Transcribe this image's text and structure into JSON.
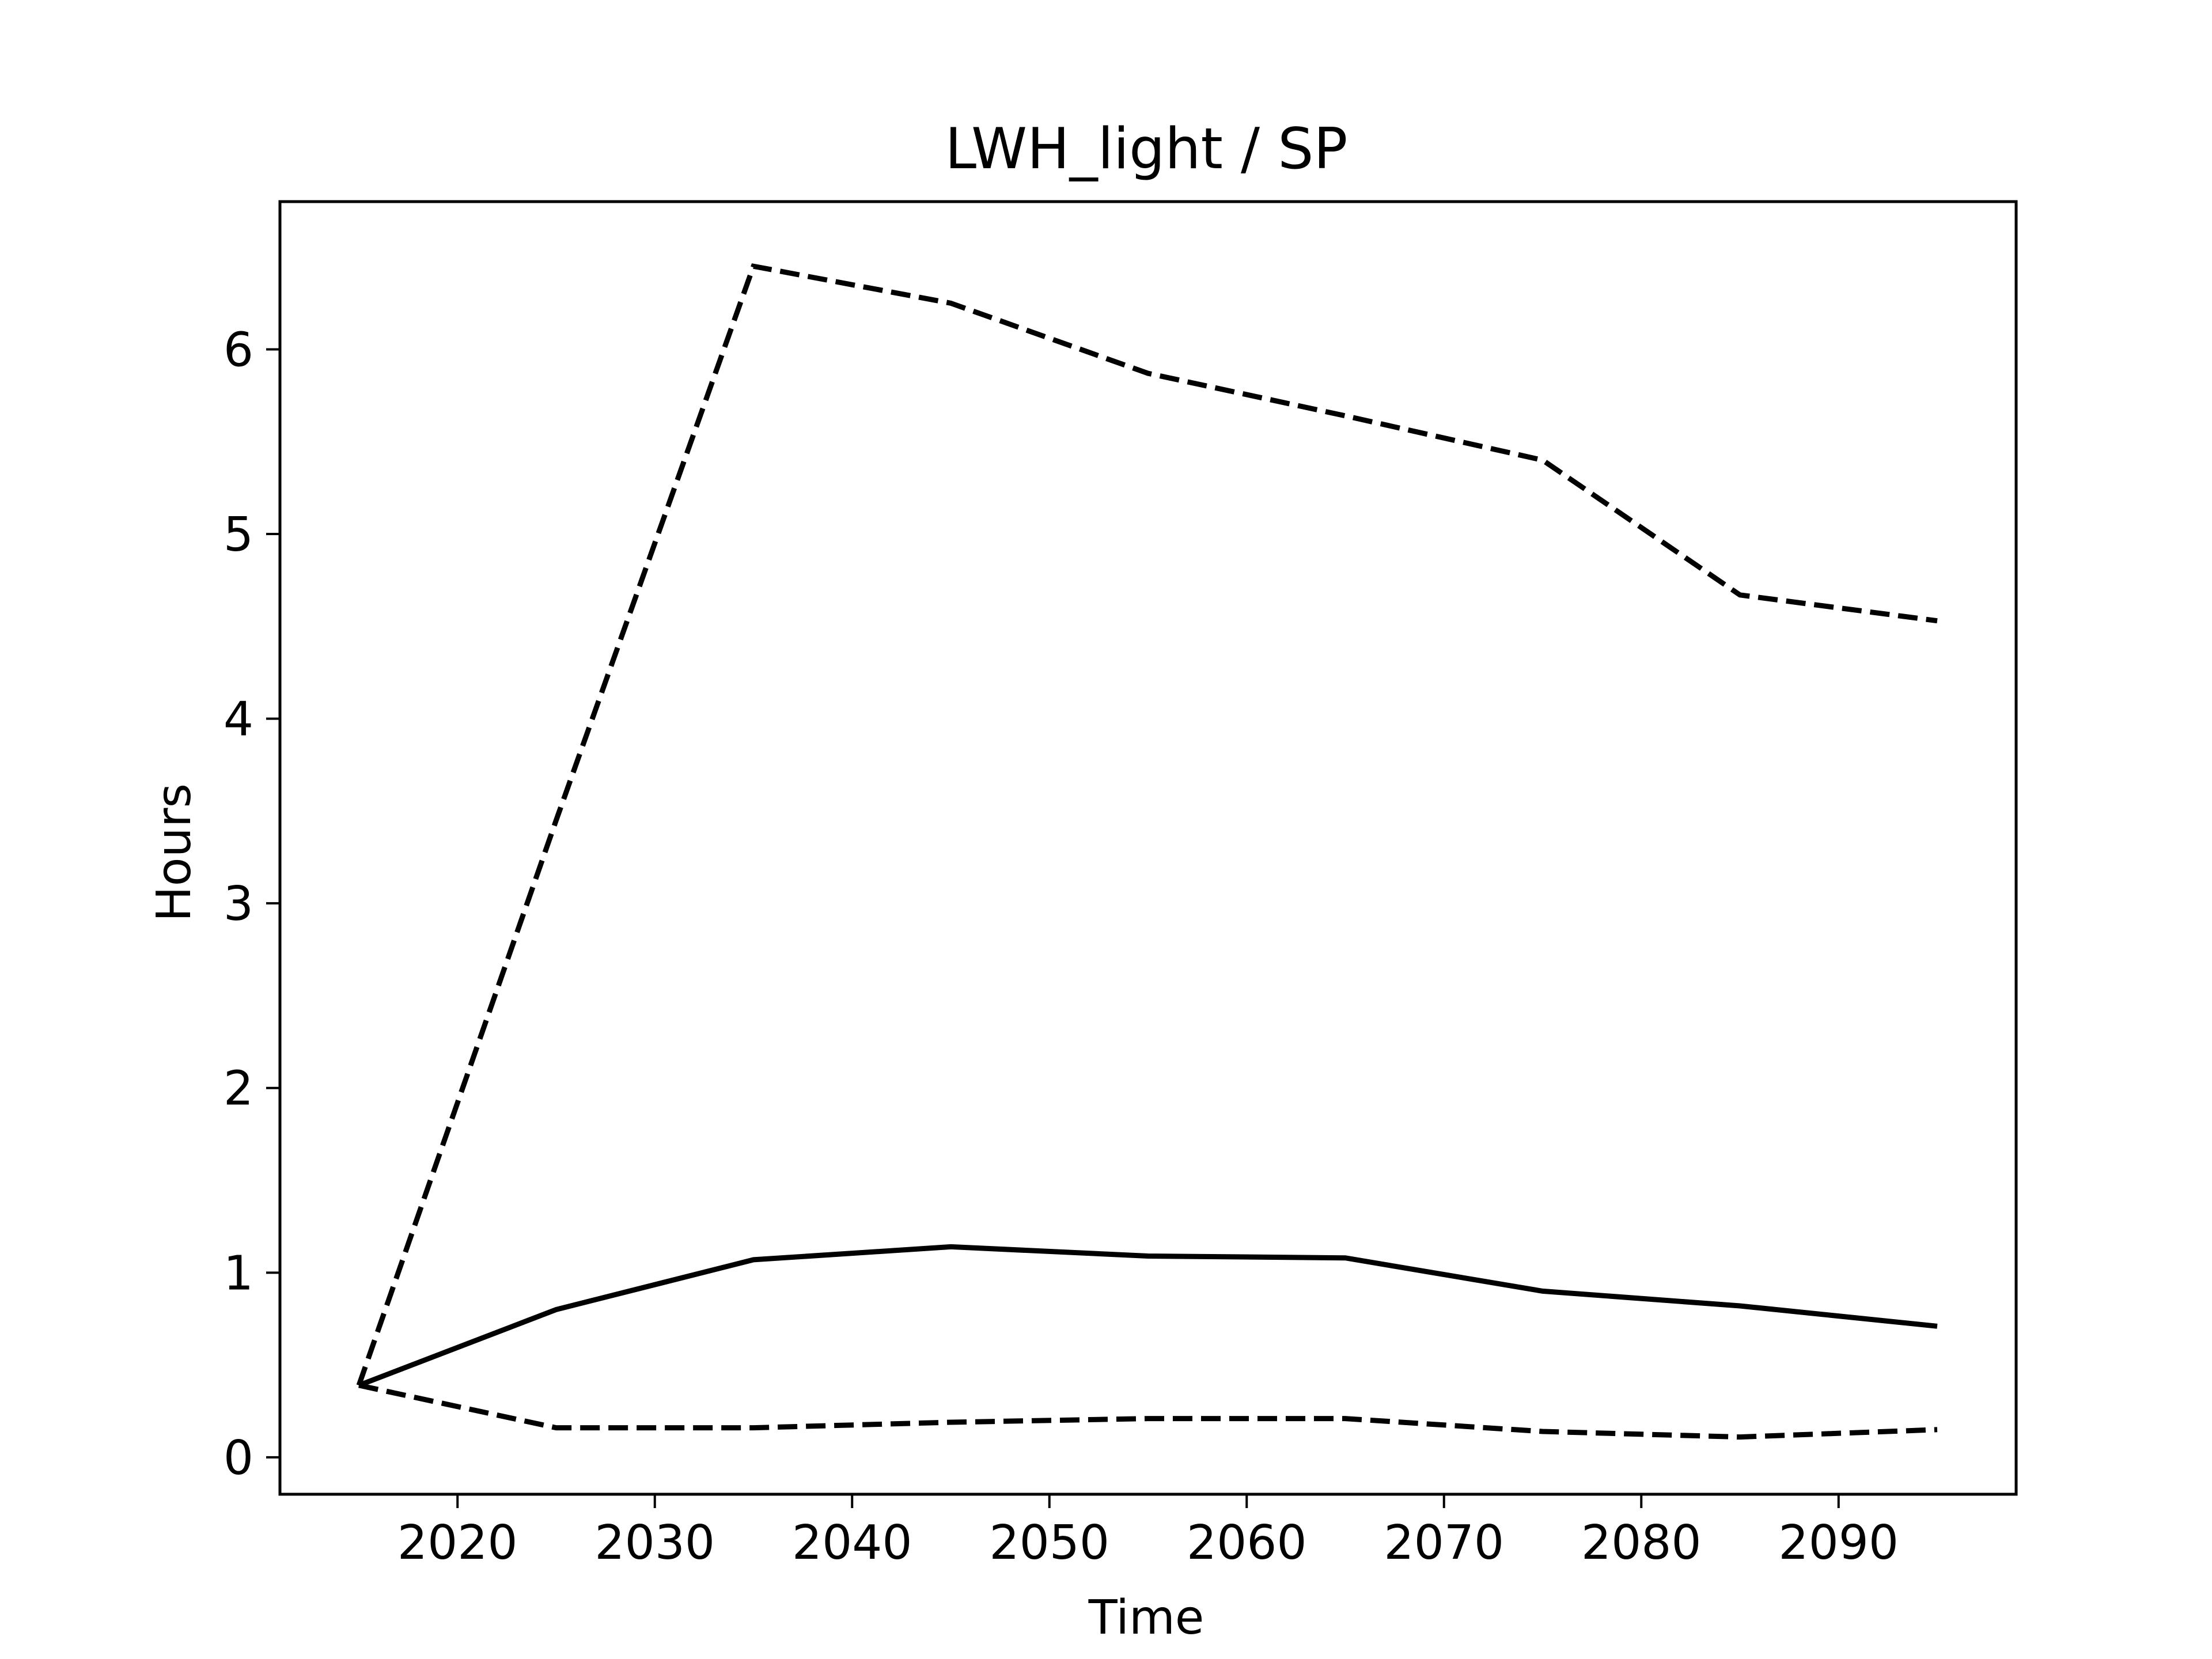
{
  "chart_data": {
    "type": "line",
    "title": "LWH_light / SP",
    "xlabel": "Time",
    "ylabel": "Hours",
    "xlim": [
      2011,
      2099
    ],
    "ylim": [
      -0.2,
      6.8
    ],
    "xticks": [
      2020,
      2030,
      2040,
      2050,
      2060,
      2070,
      2080,
      2090
    ],
    "yticks": [
      0,
      1,
      2,
      3,
      4,
      5,
      6
    ],
    "grid": false,
    "legend": "none",
    "x": [
      2015,
      2025,
      2035,
      2045,
      2055,
      2065,
      2075,
      2085,
      2095
    ],
    "series": [
      {
        "style": "solid",
        "color": "#000000",
        "values": [
          0.39,
          0.8,
          1.07,
          1.14,
          1.09,
          1.08,
          0.9,
          0.82,
          0.71
        ]
      },
      {
        "style": "dashed",
        "color": "#000000",
        "values": [
          0.39,
          3.45,
          6.45,
          6.25,
          5.87,
          5.64,
          5.4,
          4.67,
          4.53
        ]
      },
      {
        "style": "dashed",
        "color": "#000000",
        "values": [
          0.39,
          0.16,
          0.16,
          0.19,
          0.21,
          0.21,
          0.14,
          0.11,
          0.15
        ]
      }
    ]
  }
}
